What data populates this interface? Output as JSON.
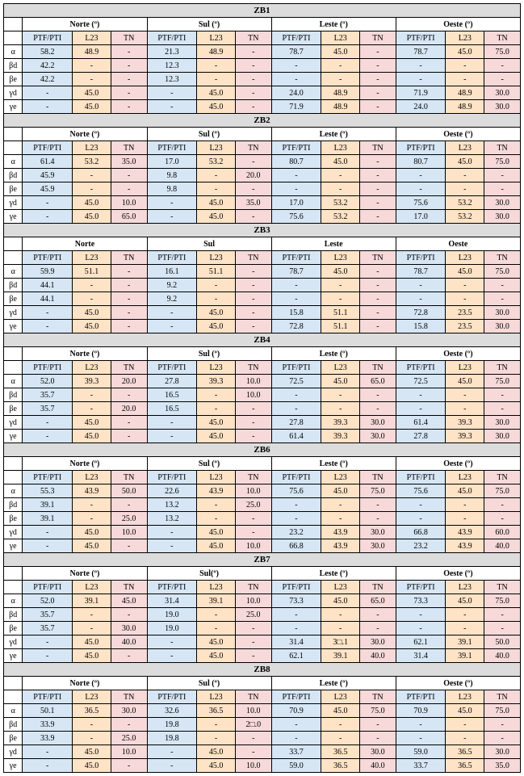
{
  "columns": {
    "ptf": "PTF/PTI",
    "l23": "L23",
    "tn": "TN"
  },
  "directions_deg": [
    "Norte (º)",
    "Sul (º)",
    "Leste (º)",
    "Oeste (º)"
  ],
  "directions_plain": [
    "Norte",
    "Sul",
    "Leste",
    "Oeste"
  ],
  "row_labels": [
    "α",
    "βd",
    "βe",
    "γd",
    "γe"
  ],
  "zones": [
    {
      "name": "ZB1",
      "dir_style": "deg",
      "rows": [
        [
          "58.2",
          "48.9",
          "-",
          "21.3",
          "48.9",
          "-",
          "78.7",
          "45.0",
          "-",
          "78.7",
          "45.0",
          "75.0"
        ],
        [
          "42.2",
          "-",
          "-",
          "12.3",
          "-",
          "-",
          "-",
          "-",
          "-",
          "-",
          "-",
          "-"
        ],
        [
          "42.2",
          "-",
          "-",
          "12.3",
          "-",
          "-",
          "-",
          "-",
          "-",
          "-",
          "-",
          "-"
        ],
        [
          "-",
          "45.0",
          "-",
          "-",
          "45.0",
          "-",
          "24.0",
          "48.9",
          "-",
          "71.9",
          "48.9",
          "30.0"
        ],
        [
          "-",
          "45.0",
          "-",
          "-",
          "45.0",
          "-",
          "71.9",
          "48.9",
          "-",
          "24.0",
          "48.9",
          "30.0"
        ]
      ]
    },
    {
      "name": "ZB2",
      "dir_style": "deg",
      "rows": [
        [
          "61.4",
          "53.2",
          "35.0",
          "17.0",
          "53.2",
          "-",
          "80.7",
          "45.0",
          "-",
          "80.7",
          "45.0",
          "75.0"
        ],
        [
          "45.9",
          "-",
          "-",
          "9.8",
          "-",
          "20.0",
          "-",
          "-",
          "-",
          "-",
          "-",
          "-"
        ],
        [
          "45.9",
          "-",
          "-",
          "9.8",
          "-",
          "-",
          "-",
          "-",
          "-",
          "-",
          "-",
          "-"
        ],
        [
          "-",
          "45.0",
          "10.0",
          "-",
          "45.0",
          "35.0",
          "17.0",
          "53.2",
          "-",
          "75.6",
          "53.2",
          "30.0"
        ],
        [
          "-",
          "45.0",
          "65.0",
          "-",
          "45.0",
          "-",
          "75.6",
          "53.2",
          "-",
          "17.0",
          "53.2",
          "30.0"
        ]
      ]
    },
    {
      "name": "ZB3",
      "dir_style": "plain",
      "rows": [
        [
          "59.9",
          "51.1",
          "-",
          "16.1",
          "51.1",
          "-",
          "78.7",
          "45.0",
          "-",
          "78.7",
          "45.0",
          "75.0"
        ],
        [
          "44.1",
          "-",
          "-",
          "9.2",
          "-",
          "-",
          "-",
          "-",
          "-",
          "-",
          "-",
          "-"
        ],
        [
          "44.1",
          "-",
          "-",
          "9.2",
          "-",
          "-",
          "-",
          "-",
          "-",
          "-",
          "-",
          "-"
        ],
        [
          "-",
          "45.0",
          "-",
          "-",
          "45.0",
          "-",
          "15.8",
          "51.1",
          "-",
          "72.8",
          "23.5",
          "30.0"
        ],
        [
          "-",
          "45.0",
          "-",
          "-",
          "45.0",
          "-",
          "72.8",
          "51.1",
          "-",
          "15.8",
          "23.5",
          "30.0"
        ]
      ]
    },
    {
      "name": "ZB4",
      "dir_style": "deg",
      "rows": [
        [
          "52.0",
          "39.3",
          "20.0",
          "27.8",
          "39.3",
          "10.0",
          "72.5",
          "45.0",
          "65.0",
          "72.5",
          "45.0",
          "75.0"
        ],
        [
          "35.7",
          "-",
          "-",
          "16.5",
          "-",
          "10.0",
          "-",
          "-",
          "-",
          "-",
          "-",
          "-"
        ],
        [
          "35.7",
          "-",
          "20.0",
          "16.5",
          "-",
          "-",
          "-",
          "-",
          "-",
          "-",
          "-",
          "-"
        ],
        [
          "-",
          "45.0",
          "-",
          "-",
          "45.0",
          "-",
          "27.8",
          "39.3",
          "30.0",
          "61.4",
          "39.3",
          "30.0"
        ],
        [
          "-",
          "45.0",
          "-",
          "-",
          "45.0",
          "-",
          "61.4",
          "39.3",
          "30.0",
          "27.8",
          "39.3",
          "30.0"
        ]
      ]
    },
    {
      "name": "ZB6",
      "dir_style": "deg",
      "rows": [
        [
          "55.3",
          "43.9",
          "50.0",
          "22.6",
          "43.9",
          "10.0",
          "75.6",
          "45.0",
          "75.0",
          "75.6",
          "45.0",
          "75.0"
        ],
        [
          "39.1",
          "-",
          "-",
          "13.2",
          "-",
          "25.0",
          "-",
          "-",
          "-",
          "-",
          "-",
          "-"
        ],
        [
          "39.1",
          "-",
          "25.0",
          "13.2",
          "-",
          "-",
          "-",
          "-",
          "-",
          "-",
          "-",
          "-"
        ],
        [
          "-",
          "45.0",
          "10.0",
          "-",
          "45.0",
          "-",
          "23.2",
          "43.9",
          "30.0",
          "66.8",
          "43.9",
          "60.0"
        ],
        [
          "-",
          "45.0",
          "-",
          "-",
          "45.0",
          "10.0",
          "66.8",
          "43.9",
          "30.0",
          "23.2",
          "43.9",
          "40.0"
        ]
      ]
    },
    {
      "name": "ZB7",
      "dir_style": "deg_sul",
      "dirs": [
        "Norte (º)",
        "Sul(º)",
        "Leste (º)",
        "Oeste (º)"
      ],
      "rows": [
        [
          "52.0",
          "39.1",
          "45.0",
          "31.4",
          "39.1",
          "10.0",
          "73.3",
          "45.0",
          "65.0",
          "73.3",
          "45.0",
          "75.0"
        ],
        [
          "35.7",
          "-",
          "-",
          "19.0",
          "-",
          "25.0",
          "-",
          "-",
          "-",
          "-",
          "-",
          "-"
        ],
        [
          "35.7",
          "-",
          "30.0",
          "19.0",
          "-",
          "-",
          "-",
          "-",
          "-",
          "-",
          "-",
          "-"
        ],
        [
          "-",
          "45.0",
          "40.0",
          "-",
          "45.0",
          "-",
          "31.4",
          "3□.1",
          "30.0",
          "62.1",
          "39.1",
          "50.0"
        ],
        [
          "-",
          "45.0",
          "-",
          "-",
          "45.0",
          "-",
          "62.1",
          "39.1",
          "40.0",
          "31.4",
          "39.1",
          "40.0"
        ]
      ]
    },
    {
      "name": "ZB8",
      "dir_style": "deg",
      "rows": [
        [
          "50.1",
          "36.5",
          "30.0",
          "32.6",
          "36.5",
          "10.0",
          "70.9",
          "45.0",
          "75.0",
          "70.9",
          "45.0",
          "75.0"
        ],
        [
          "33.9",
          "-",
          "-",
          "19.8",
          "-",
          "2□.0",
          "-",
          "-",
          "-",
          "-",
          "-",
          "-"
        ],
        [
          "33.9",
          "-",
          "25.0",
          "19.8",
          "-",
          "-",
          "-",
          "-",
          "-",
          "-",
          "-",
          "-"
        ],
        [
          "-",
          "45.0",
          "10.0",
          "-",
          "45.0",
          "-",
          "33.7",
          "36.5",
          "30.0",
          "59.0",
          "36.5",
          "30.0"
        ],
        [
          "-",
          "45.0",
          "-",
          "-",
          "45.0",
          "10.0",
          "59.0",
          "36.5",
          "40.0",
          "33.7",
          "36.5",
          "35.0"
        ]
      ]
    }
  ]
}
